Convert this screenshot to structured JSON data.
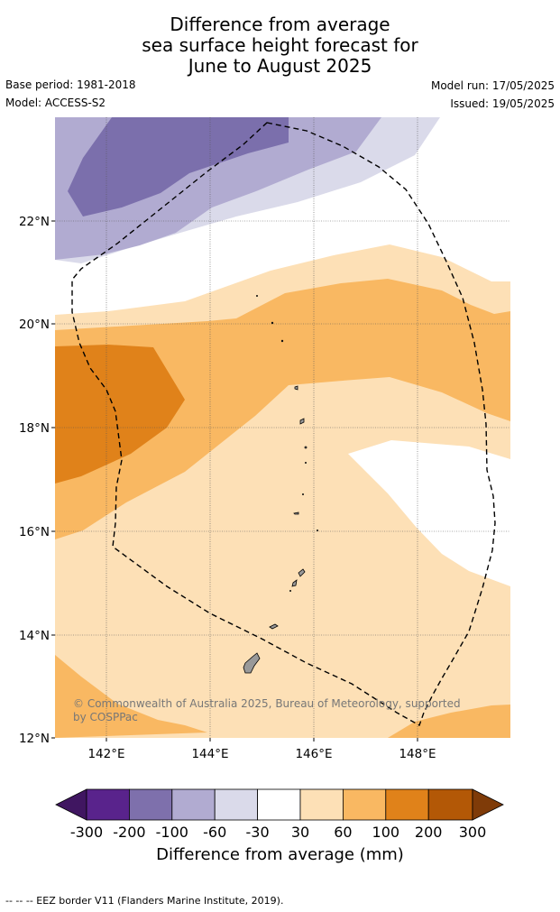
{
  "title": {
    "line1": "Difference from average",
    "line2": "sea surface height forecast for",
    "line3": "June to August 2025"
  },
  "meta": {
    "base_period": "Base period: 1981-2018",
    "model": "Model: ACCESS-S2",
    "model_run": "Model run: 17/05/2025",
    "issued": "Issued: 19/05/2025"
  },
  "map": {
    "lat_labels": [
      "22°N",
      "20°N",
      "18°N",
      "16°N",
      "14°N",
      "12°N"
    ],
    "lon_labels": [
      "142°E",
      "144°E",
      "146°E",
      "148°E"
    ],
    "copyright_line1": "© Commonwealth of Australia 2025, Bureau of Meteorology, supported",
    "copyright_line2": "by COSPPac",
    "colors": {
      "purple_dark": "#7b6fac",
      "purple_mid": "#b1abd1",
      "purple_light": "#dadaea",
      "orange_light": "#fde0b6",
      "orange_mid": "#f9b862",
      "orange_dark": "#e0821a"
    }
  },
  "colorbar": {
    "ticks": [
      "-300",
      "-200",
      "-100",
      "-60",
      "-30",
      "30",
      "60",
      "100",
      "200",
      "300"
    ],
    "colors": [
      "#401661",
      "#59238c",
      "#7e70ac",
      "#b1abd1",
      "#dadaea",
      "#ffffff",
      "#fde0b6",
      "#f9b862",
      "#e0821a",
      "#b35806",
      "#7f3b08"
    ],
    "label": "Difference from average (mm)"
  },
  "footer": "--  --  -- EEZ border V11 (Flanders Marine Institute, 2019)."
}
